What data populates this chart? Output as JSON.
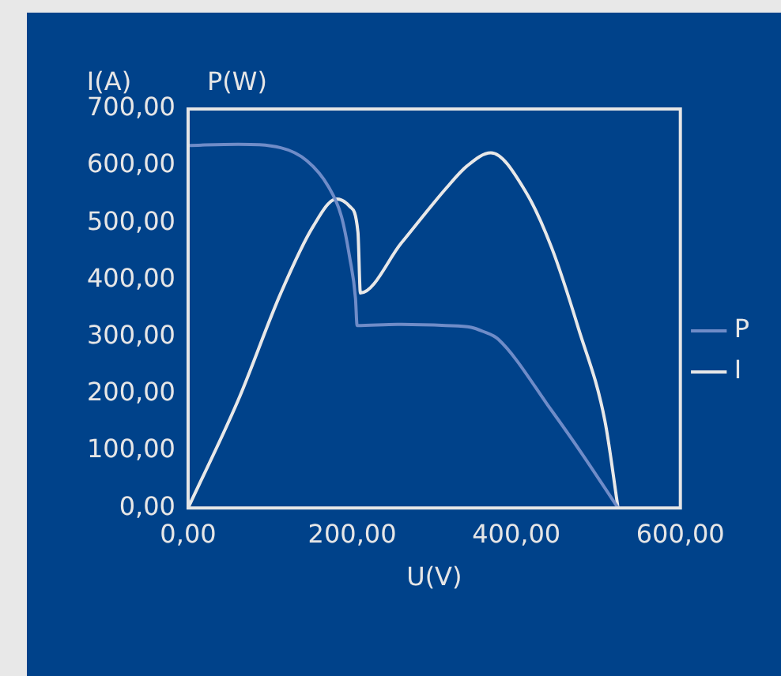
{
  "chart_data": {
    "type": "line",
    "xlabel": "U(V)",
    "ylabel": "I(A)",
    "annotations": [
      "P(W)"
    ],
    "xlim": [
      0,
      600
    ],
    "xticks": [
      {
        "value": 0,
        "label": "0,00"
      },
      {
        "value": 200,
        "label": "200,00"
      },
      {
        "value": 400,
        "label": "400,00"
      },
      {
        "value": 600,
        "label": "600,00"
      }
    ],
    "ylim": [
      0,
      700
    ],
    "yticks": [
      {
        "value": 0,
        "label": "0,00"
      },
      {
        "value": 100,
        "label": "100,00"
      },
      {
        "value": 200,
        "label": "200,00"
      },
      {
        "value": 300,
        "label": "300,00"
      },
      {
        "value": 400,
        "label": "400,00"
      },
      {
        "value": 500,
        "label": "500,00"
      },
      {
        "value": 600,
        "label": "600,00"
      },
      {
        "value": 700,
        "label": "700,00"
      }
    ],
    "grid": false,
    "legend": "right",
    "marker": "none",
    "line_style": "solid",
    "series": [
      {
        "name": "P",
        "color": "#6f8cc8",
        "x": [
          0,
          61,
          113,
          145,
          171,
          187,
          197,
          204,
          206,
          255,
          314,
          345,
          359,
          378,
          443,
          482,
          524
        ],
        "values": [
          636,
          638,
          632,
          609,
          564,
          511,
          439,
          368,
          320,
          322,
          320,
          317,
          310,
          296,
          171,
          91,
          0
        ]
      },
      {
        "name": "I",
        "color": "#e8e8e8",
        "x": [
          0,
          61,
          113,
          152,
          181,
          197,
          207,
          210,
          260,
          314,
          340,
          369,
          411,
          443,
          476,
          508,
          524
        ],
        "values": [
          0,
          189,
          377,
          493,
          542,
          529,
          484,
          377,
          465,
          560,
          600,
          623,
          556,
          457,
          314,
          153,
          0
        ]
      }
    ]
  }
}
